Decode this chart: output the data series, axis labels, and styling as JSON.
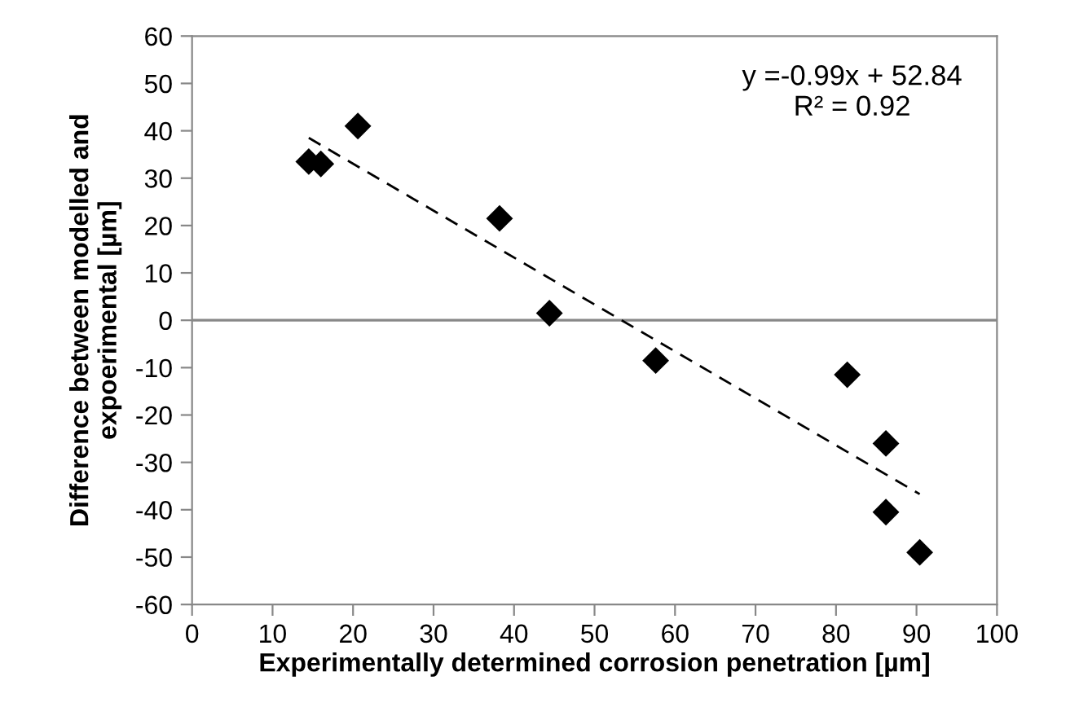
{
  "chart_data": {
    "type": "scatter",
    "xlabel": "Experimentally determined corrosion penetration [µm]",
    "ylabel": "Difference between modelled and\nexpoerimental [µm]",
    "annotations": [
      "y =-0.99x + 52.84\nR² = 0.92"
    ],
    "xlim": [
      0,
      100
    ],
    "xticks": [
      0,
      10,
      20,
      30,
      40,
      50,
      60,
      70,
      80,
      90,
      100
    ],
    "ylim": [
      -60,
      60
    ],
    "yticks": [
      -60,
      -50,
      -40,
      -30,
      -20,
      -10,
      0,
      10,
      20,
      30,
      40,
      50,
      60
    ],
    "grid": false,
    "legend": false,
    "ref_lines": [
      {
        "axis": "y",
        "value": 0,
        "color": "#888888"
      }
    ],
    "series": [
      {
        "marker": "diamond",
        "color": "#000000",
        "x": [
          14.5,
          16,
          20.6,
          38.2,
          44.4,
          57.6,
          81.4,
          86.2,
          86.2,
          90.4
        ],
        "values": [
          33.5,
          33,
          41,
          21.5,
          1.5,
          -8.5,
          -11.5,
          -26,
          -40.5,
          -49
        ]
      },
      {
        "type": "line",
        "line_style": "dashed",
        "marker": "none",
        "color": "#000000",
        "x": [
          14.5,
          90.4
        ],
        "values": [
          38.5,
          -36.7
        ]
      }
    ]
  }
}
